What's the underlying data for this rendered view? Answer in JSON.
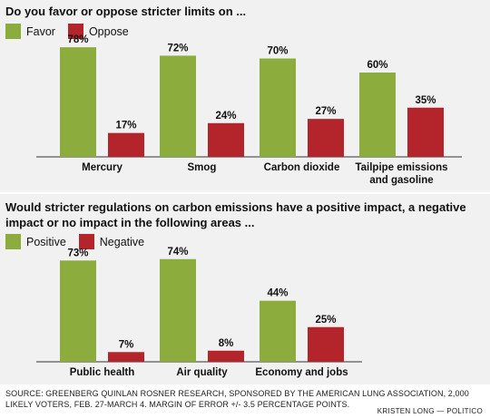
{
  "colors": {
    "favor": "#8cad3e",
    "oppose": "#b4242b",
    "axis": "#333333"
  },
  "chart_data": [
    {
      "type": "bar",
      "title": "Do you favor or oppose stricter limits on ...",
      "series": [
        {
          "name": "Favor",
          "values": [
            78,
            72,
            70,
            60
          ]
        },
        {
          "name": "Oppose",
          "values": [
            17,
            24,
            27,
            35
          ]
        }
      ],
      "categories": [
        [
          "Mercury"
        ],
        [
          "Smog"
        ],
        [
          "Carbon dioxide"
        ],
        [
          "Tailpipe emissions",
          "and gasoline"
        ]
      ],
      "value_labels": [
        [
          "78%",
          "72%",
          "70%",
          "60%"
        ],
        [
          "17%",
          "24%",
          "27%",
          "35%"
        ]
      ],
      "ylim": [
        0,
        100
      ],
      "legend": "top-left",
      "grid": false
    },
    {
      "type": "bar",
      "title": "Would stricter regulations on carbon emissions have a positive impact, a negative impact or no impact in the following areas ...",
      "series": [
        {
          "name": "Positive",
          "values": [
            73,
            74,
            44
          ]
        },
        {
          "name": "Negative",
          "values": [
            7,
            8,
            25
          ]
        }
      ],
      "categories": [
        [
          "Public health"
        ],
        [
          "Air quality"
        ],
        [
          "Economy and jobs"
        ]
      ],
      "value_labels": [
        [
          "73%",
          "74%",
          "44%"
        ],
        [
          "7%",
          "8%",
          "25%"
        ]
      ],
      "ylim": [
        0,
        100
      ],
      "legend": "top-left",
      "grid": false
    }
  ],
  "source": "SOURCE: GREENBERG QUINLAN ROSNER RESEARCH, SPONSORED BY THE AMERICAN LUNG ASSOCIATION, 2,000 LIKELY VOTERS, FEB. 27-MARCH 4. MARGIN OF ERROR +/- 3.5 PERCENTAGE POINTS.",
  "credit": "KRISTEN LONG — POLITICO"
}
